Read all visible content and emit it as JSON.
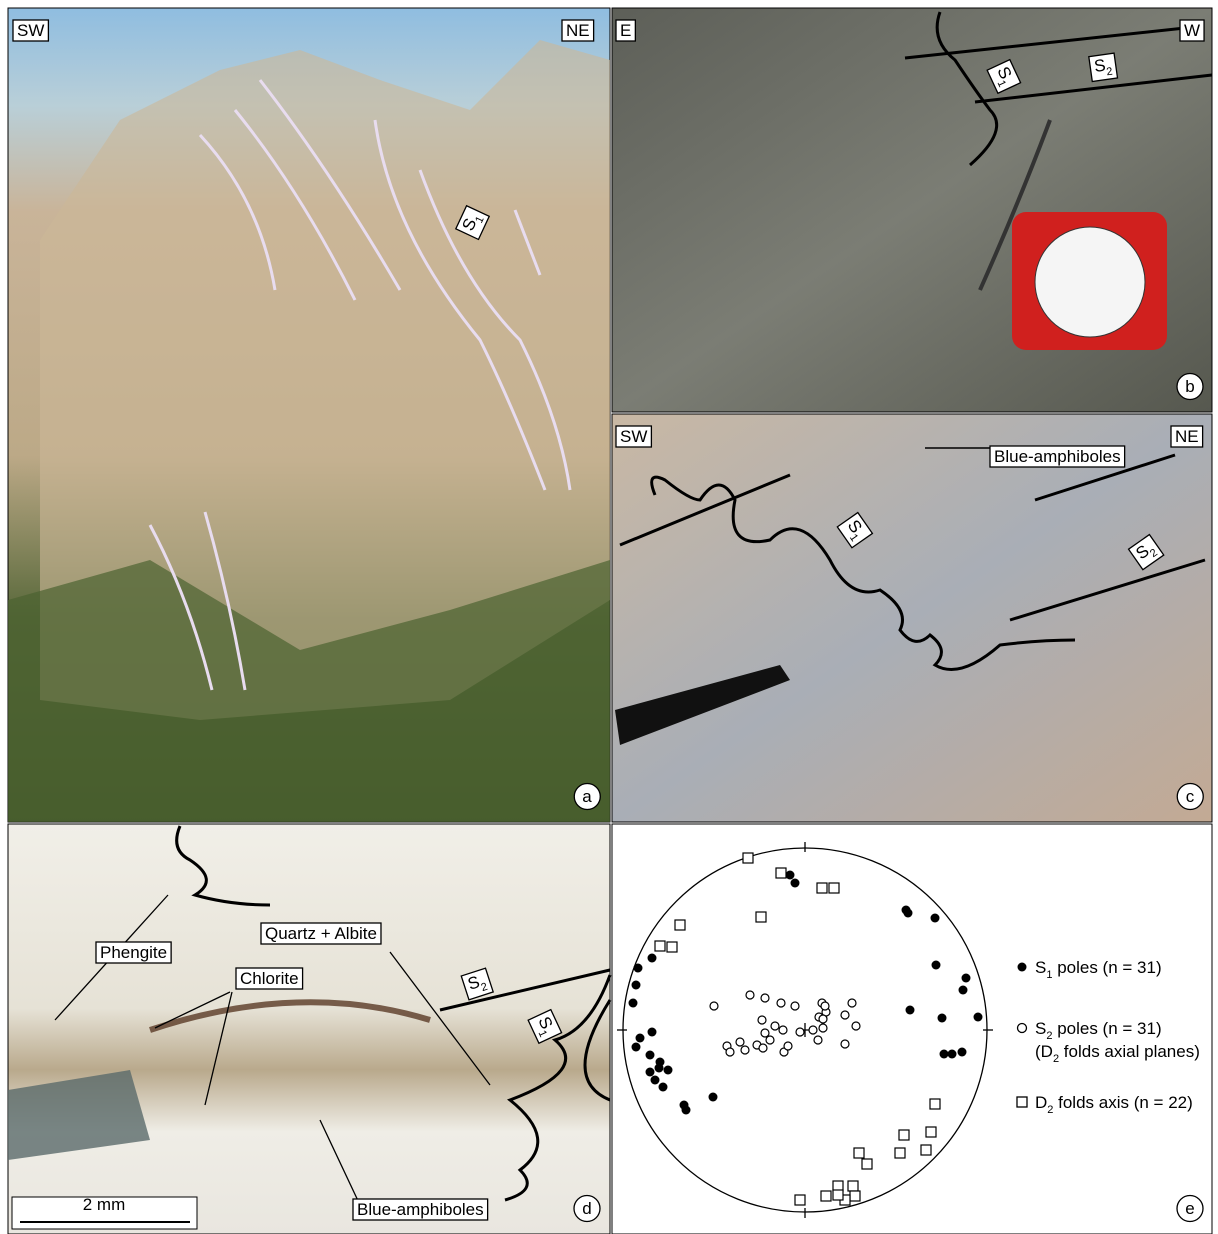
{
  "panel_a": {
    "left": "SW",
    "right": "NE",
    "s1": {
      "main": "S",
      "sub": "1"
    },
    "letter": "a"
  },
  "panel_b": {
    "left": "E",
    "right": "W",
    "s1": {
      "main": "S",
      "sub": "1"
    },
    "s2": {
      "main": "S",
      "sub": "2"
    },
    "letter": "b"
  },
  "panel_c": {
    "left": "SW",
    "right": "NE",
    "blue_amphiboles": "Blue-amphiboles",
    "s1": {
      "main": "S",
      "sub": "1"
    },
    "s2": {
      "main": "S",
      "sub": "2"
    },
    "letter": "c"
  },
  "panel_d": {
    "phengite": "Phengite",
    "quartz_albite": "Quartz + Albite",
    "chlorite": "Chlorite",
    "s2": {
      "main": "S",
      "sub": "2"
    },
    "s1": {
      "main": "S",
      "sub": "1"
    },
    "scale": "2 mm",
    "blue_amphiboles": "Blue-amphiboles",
    "letter": "d"
  },
  "panel_e": {
    "legend": [
      {
        "main": "S",
        "sub": "1",
        "text": " poles (n = 31)"
      },
      {
        "main": "S",
        "sub": "2",
        "text": " poles (n = 31)",
        "note": {
          "open": "(D",
          "sub": "2",
          "text": " folds axial planes)"
        }
      },
      {
        "main": "D",
        "sub": "2",
        "text": " folds axis (n = 22)"
      }
    ],
    "letter": "e"
  }
}
